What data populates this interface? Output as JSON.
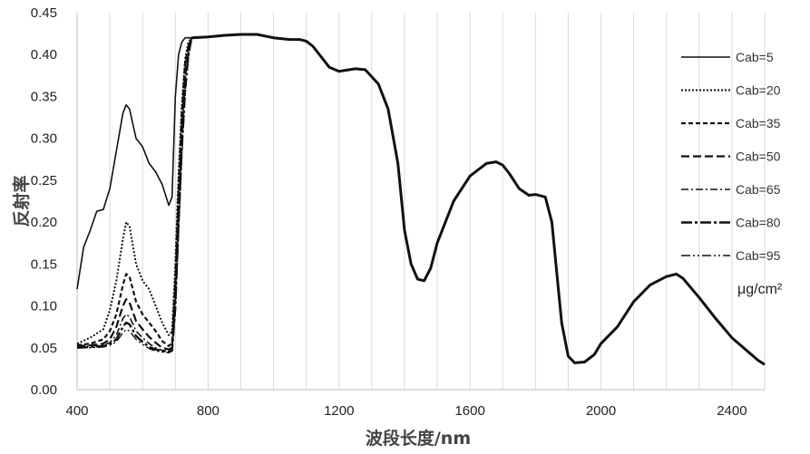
{
  "chart_data": {
    "type": "line",
    "xlabel": "波段长度/nm",
    "ylabel": "反射率",
    "xlim": [
      400,
      2500
    ],
    "ylim": [
      0,
      0.45
    ],
    "grid": "vertical",
    "legend_position": "right",
    "unit_label": "μg/cm²",
    "xticks": [
      "400",
      "800",
      "1200",
      "1600",
      "2000",
      "2400"
    ],
    "yticks": [
      "0.00",
      "0.05",
      "0.10",
      "0.15",
      "0.20",
      "0.25",
      "0.30",
      "0.35",
      "0.40",
      "0.45"
    ],
    "series": [
      {
        "name": "Cab=5",
        "style": "solid",
        "x": [
          400,
          420,
          440,
          460,
          480,
          500,
          520,
          540,
          550,
          560,
          580,
          600,
          620,
          640,
          660,
          680,
          690,
          700,
          710,
          720,
          730,
          740,
          750
        ],
        "y": [
          0.12,
          0.17,
          0.19,
          0.213,
          0.215,
          0.24,
          0.285,
          0.33,
          0.34,
          0.335,
          0.3,
          0.29,
          0.27,
          0.26,
          0.245,
          0.22,
          0.23,
          0.35,
          0.4,
          0.415,
          0.42,
          0.42,
          0.42
        ]
      },
      {
        "name": "Cab=20",
        "style": "dotted",
        "x": [
          400,
          440,
          480,
          500,
          520,
          540,
          550,
          560,
          580,
          600,
          620,
          640,
          660,
          680,
          690,
          700,
          710,
          720,
          730,
          740,
          750
        ],
        "y": [
          0.055,
          0.062,
          0.072,
          0.095,
          0.13,
          0.18,
          0.2,
          0.195,
          0.15,
          0.13,
          0.12,
          0.1,
          0.08,
          0.065,
          0.07,
          0.15,
          0.26,
          0.34,
          0.395,
          0.415,
          0.42
        ]
      },
      {
        "name": "Cab=35",
        "style": "dash",
        "x": [
          400,
          440,
          480,
          500,
          520,
          540,
          550,
          560,
          580,
          600,
          620,
          640,
          660,
          680,
          690,
          700,
          710,
          720,
          730,
          740,
          750
        ],
        "y": [
          0.053,
          0.055,
          0.06,
          0.07,
          0.09,
          0.125,
          0.138,
          0.135,
          0.105,
          0.09,
          0.08,
          0.07,
          0.058,
          0.052,
          0.056,
          0.13,
          0.24,
          0.33,
          0.39,
          0.41,
          0.42
        ]
      },
      {
        "name": "Cab=50",
        "style": "longdash",
        "x": [
          400,
          440,
          480,
          500,
          520,
          540,
          550,
          560,
          580,
          600,
          620,
          640,
          660,
          680,
          690,
          700,
          710,
          720,
          730,
          740,
          750
        ],
        "y": [
          0.052,
          0.053,
          0.055,
          0.06,
          0.075,
          0.1,
          0.108,
          0.104,
          0.082,
          0.072,
          0.063,
          0.056,
          0.05,
          0.048,
          0.05,
          0.12,
          0.22,
          0.31,
          0.38,
          0.41,
          0.42
        ]
      },
      {
        "name": "Cab=65",
        "style": "dashdot",
        "x": [
          400,
          440,
          480,
          500,
          520,
          540,
          550,
          560,
          580,
          600,
          620,
          640,
          660,
          680,
          690,
          700,
          710,
          720,
          730,
          740,
          750
        ],
        "y": [
          0.051,
          0.052,
          0.053,
          0.056,
          0.065,
          0.085,
          0.09,
          0.087,
          0.07,
          0.062,
          0.055,
          0.05,
          0.047,
          0.046,
          0.048,
          0.11,
          0.21,
          0.3,
          0.37,
          0.405,
          0.42
        ]
      },
      {
        "name": "Cab=80",
        "style": "longdashdot",
        "x": [
          400,
          440,
          480,
          500,
          520,
          540,
          550,
          560,
          580,
          600,
          620,
          640,
          660,
          680,
          690,
          700,
          710,
          720,
          730,
          740,
          750
        ],
        "y": [
          0.05,
          0.051,
          0.052,
          0.054,
          0.06,
          0.075,
          0.08,
          0.078,
          0.064,
          0.057,
          0.051,
          0.048,
          0.046,
          0.045,
          0.047,
          0.1,
          0.2,
          0.29,
          0.36,
          0.4,
          0.42
        ]
      },
      {
        "name": "Cab=95",
        "style": "dashdotdot",
        "x": [
          400,
          440,
          480,
          500,
          520,
          540,
          550,
          560,
          580,
          600,
          620,
          640,
          660,
          680,
          690,
          700,
          710,
          720,
          730,
          740,
          750
        ],
        "y": [
          0.05,
          0.05,
          0.051,
          0.053,
          0.057,
          0.068,
          0.072,
          0.07,
          0.06,
          0.054,
          0.049,
          0.046,
          0.045,
          0.044,
          0.046,
          0.09,
          0.19,
          0.28,
          0.35,
          0.395,
          0.42
        ]
      }
    ],
    "shared_nir_swir": {
      "x": [
        750,
        800,
        850,
        900,
        950,
        1000,
        1050,
        1080,
        1100,
        1120,
        1150,
        1170,
        1200,
        1250,
        1280,
        1320,
        1350,
        1380,
        1400,
        1420,
        1440,
        1460,
        1480,
        1500,
        1550,
        1600,
        1650,
        1680,
        1700,
        1720,
        1750,
        1780,
        1800,
        1830,
        1850,
        1870,
        1880,
        1900,
        1920,
        1950,
        1980,
        2000,
        2050,
        2100,
        2150,
        2200,
        2230,
        2250,
        2300,
        2350,
        2400,
        2450,
        2480,
        2500
      ],
      "y": [
        0.42,
        0.421,
        0.423,
        0.424,
        0.424,
        0.42,
        0.418,
        0.418,
        0.416,
        0.41,
        0.395,
        0.385,
        0.38,
        0.383,
        0.382,
        0.365,
        0.335,
        0.27,
        0.19,
        0.15,
        0.132,
        0.13,
        0.145,
        0.175,
        0.225,
        0.255,
        0.27,
        0.272,
        0.268,
        0.258,
        0.24,
        0.232,
        0.233,
        0.23,
        0.2,
        0.12,
        0.08,
        0.04,
        0.032,
        0.033,
        0.042,
        0.055,
        0.075,
        0.105,
        0.125,
        0.135,
        0.138,
        0.133,
        0.11,
        0.085,
        0.062,
        0.045,
        0.035,
        0.03
      ]
    }
  }
}
